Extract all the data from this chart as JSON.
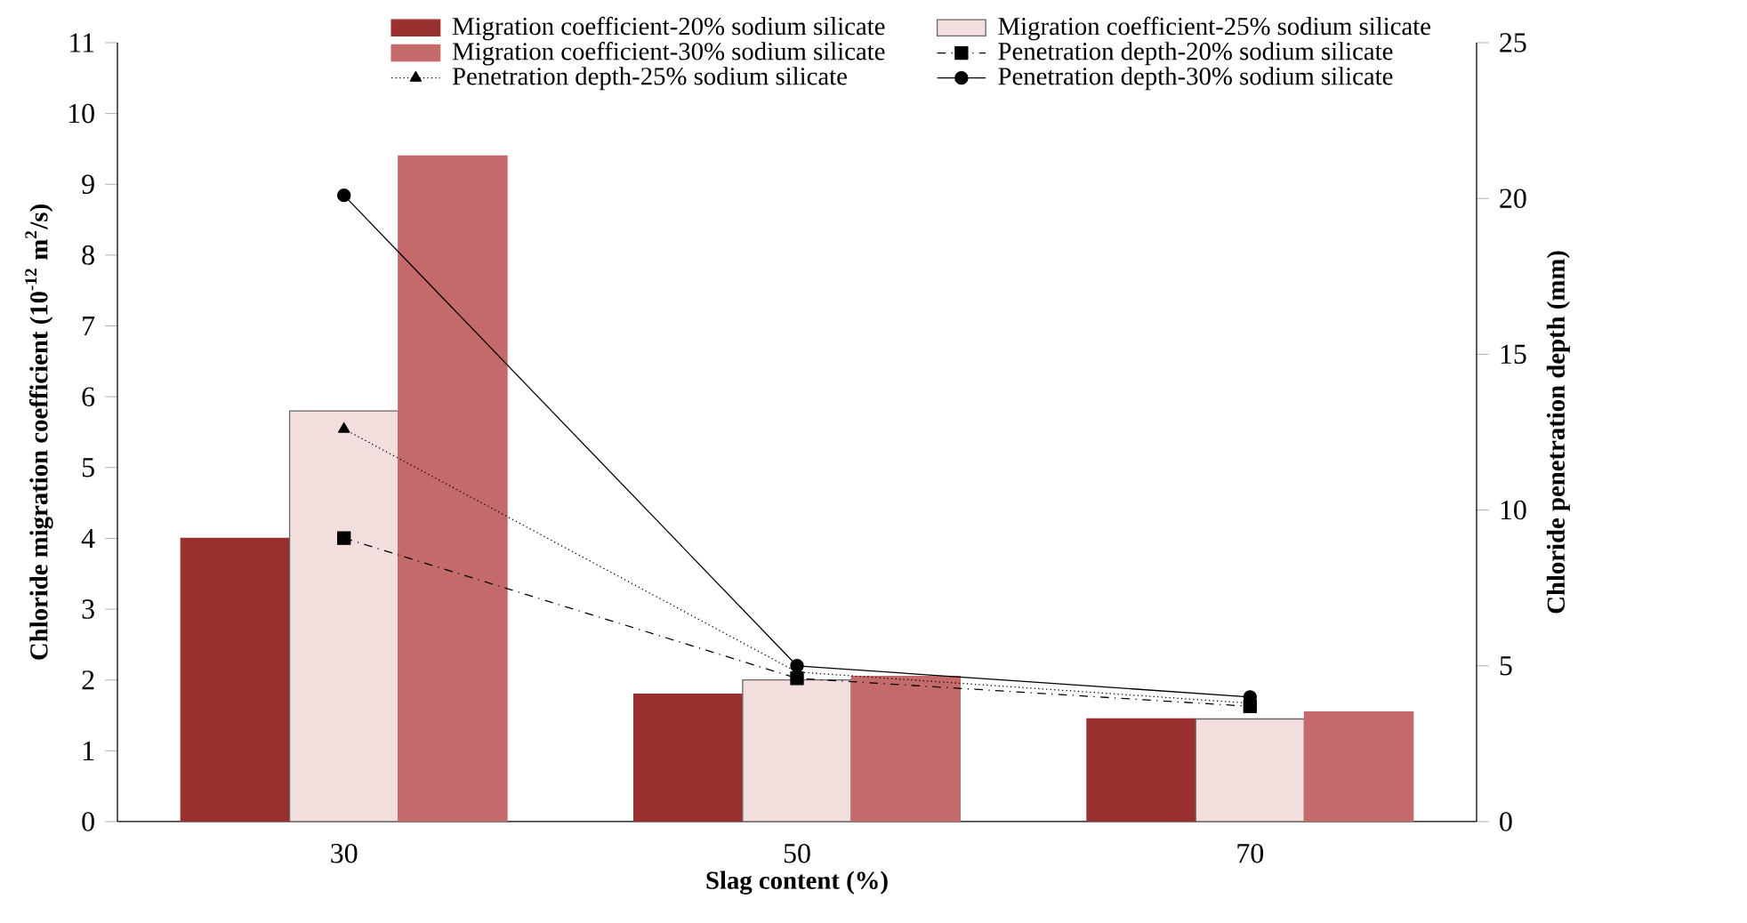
{
  "chart_data": {
    "type": "bar",
    "xlabel": "Slag content (%)",
    "ylabel": "Chloride migration coefficient (10$^{-12}$ m$^{2}$/s)",
    "y2label": "Chloride penetration depth (mm)",
    "categories": [
      "30",
      "50",
      "70"
    ],
    "series": [
      {
        "name": "Migration coefficient-20% sodium silicate",
        "color": "#992f2f",
        "values": [
          4.0,
          1.8,
          1.45
        ]
      },
      {
        "name": "Migration coefficient-25% sodium silicate",
        "color": "#f3dede",
        "values": [
          5.8,
          2.0,
          1.45
        ]
      },
      {
        "name": "Migration coefficient-30% sodium silicate",
        "color": "#c46a6a",
        "values": [
          9.4,
          2.05,
          1.55
        ]
      },
      {
        "name": "Penetration depth-20% sodium silicate",
        "type": "line",
        "axis": "y2",
        "color": "#000000",
        "marker": "square",
        "line_style": "dashed",
        "values": [
          9.1,
          4.6,
          3.7
        ]
      },
      {
        "name": "Penetration depth-25% sodium silicate",
        "type": "line",
        "axis": "y2",
        "color": "#000000",
        "marker": "triangle",
        "line_style": "dotted",
        "values": [
          12.6,
          4.8,
          3.8
        ]
      },
      {
        "name": "Penetration depth-30% sodium silicate",
        "type": "line",
        "axis": "y2",
        "color": "#000000",
        "marker": "circle",
        "line_style": "solid",
        "values": [
          20.1,
          5.0,
          4.0
        ]
      }
    ],
    "ylim": [
      0,
      11
    ],
    "yticks": [
      0,
      1,
      2,
      3,
      4,
      5,
      6,
      7,
      8,
      9,
      10,
      11
    ],
    "y2lim": [
      0,
      25
    ],
    "y2ticks": [
      0,
      5,
      10,
      15,
      20,
      25
    ],
    "legend": "top",
    "grid": false
  }
}
